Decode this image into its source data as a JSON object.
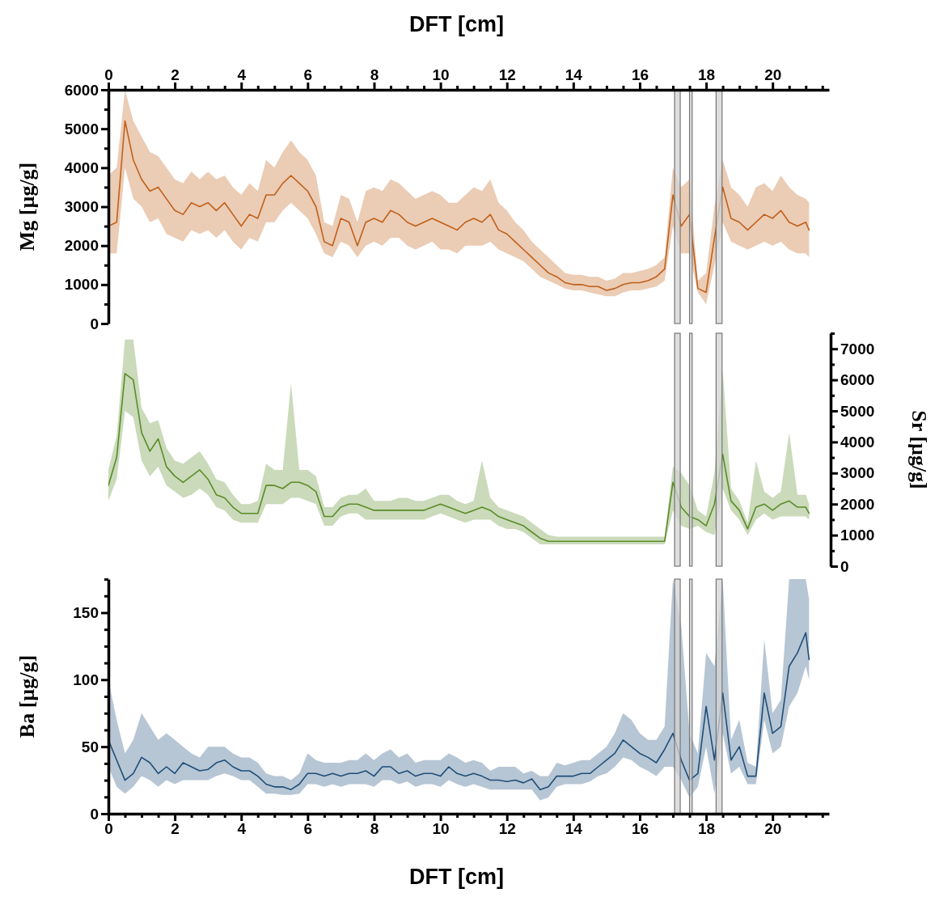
{
  "chart_data": [
    {
      "type": "line",
      "ylabel": "Mg [µg/g]",
      "x2label": "DFT [cm]",
      "xlim": [
        0,
        21.7
      ],
      "x2lim": [
        0,
        21.7
      ],
      "x2ticks": [
        0,
        {
          "value": 0.5,
          "label": null
        },
        {
          "value": 1,
          "label": null
        },
        {
          "value": 1.5,
          "label": null
        },
        2,
        {
          "value": 2.5,
          "label": null
        },
        {
          "value": 3,
          "label": null
        },
        {
          "value": 3.5,
          "label": null
        },
        4,
        {
          "value": 4.5,
          "label": null
        },
        {
          "value": 5,
          "label": null
        },
        {
          "value": 5.5,
          "label": null
        },
        6,
        {
          "value": 6.5,
          "label": null
        },
        {
          "value": 7,
          "label": null
        },
        {
          "value": 7.5,
          "label": null
        },
        8,
        {
          "value": 8.5,
          "label": null
        },
        {
          "value": 9,
          "label": null
        },
        {
          "value": 9.5,
          "label": null
        },
        10,
        {
          "value": 10.5,
          "label": null
        },
        {
          "value": 11,
          "label": null
        },
        {
          "value": 11.5,
          "label": null
        },
        12,
        {
          "value": 12.5,
          "label": null
        },
        {
          "value": 13,
          "label": null
        },
        {
          "value": 13.5,
          "label": null
        },
        14,
        {
          "value": 14.5,
          "label": null
        },
        {
          "value": 15,
          "label": null
        },
        {
          "value": 15.5,
          "label": null
        },
        16,
        {
          "value": 16.5,
          "label": null
        },
        {
          "value": 17,
          "label": null
        },
        {
          "value": 17.5,
          "label": null
        },
        18,
        {
          "value": 18.5,
          "label": null
        },
        {
          "value": 19,
          "label": null
        },
        {
          "value": 19.5,
          "label": null
        },
        20,
        {
          "value": 20.5,
          "label": null
        },
        {
          "value": 21,
          "label": null
        },
        {
          "value": 21.5,
          "label": null
        }
      ],
      "ylim": [
        0,
        6000
      ],
      "yticks": [
        0,
        {
          "value": 500,
          "label": null
        },
        1000,
        {
          "value": 1500,
          "label": null
        },
        2000,
        {
          "value": 2500,
          "label": null
        },
        3000,
        {
          "value": 3500,
          "label": null
        },
        4000,
        {
          "value": 4500,
          "label": null
        },
        5000,
        {
          "value": 5500,
          "label": null
        },
        6000
      ],
      "bands": [
        {
          "axis": "x",
          "from": 17.05,
          "to": 17.22,
          "color": "#d3d3d3"
        },
        {
          "axis": "x",
          "from": 17.5,
          "to": 17.58,
          "color": "#d3d3d3"
        },
        {
          "axis": "x",
          "from": 18.3,
          "to": 18.48,
          "color": "#d3d3d3"
        }
      ],
      "series": [
        {
          "color": "#c0601a",
          "x": [
            0,
            0.25,
            0.5,
            0.75,
            1,
            1.25,
            1.5,
            1.75,
            2,
            2.25,
            2.5,
            2.75,
            3,
            3.25,
            3.5,
            3.75,
            4,
            4.25,
            4.5,
            4.75,
            5,
            5.25,
            5.5,
            5.75,
            6,
            6.25,
            6.5,
            6.75,
            7,
            7.25,
            7.5,
            7.75,
            8,
            8.25,
            8.5,
            8.75,
            9,
            9.25,
            9.5,
            9.75,
            10,
            10.25,
            10.5,
            10.75,
            11,
            11.25,
            11.5,
            11.75,
            12,
            12.25,
            12.5,
            12.75,
            13,
            13.25,
            13.5,
            13.75,
            14,
            14.25,
            14.5,
            14.75,
            15,
            15.25,
            15.5,
            15.75,
            16,
            16.25,
            16.5,
            16.75,
            17,
            17.25,
            17.5,
            17.75,
            18,
            18.25,
            18.5,
            18.75,
            19,
            19.25,
            19.5,
            19.75,
            20,
            20.25,
            20.5,
            20.75,
            21,
            21.1
          ],
          "values": [
            2500,
            2600,
            5200,
            4200,
            3700,
            3400,
            3500,
            3200,
            2900,
            2800,
            3100,
            3000,
            3100,
            2900,
            3100,
            2800,
            2500,
            2800,
            2700,
            3300,
            3300,
            3600,
            3800,
            3600,
            3400,
            3000,
            2100,
            2000,
            2700,
            2600,
            2000,
            2600,
            2700,
            2600,
            2900,
            2800,
            2600,
            2500,
            2600,
            2700,
            2600,
            2500,
            2400,
            2600,
            2700,
            2600,
            2800,
            2400,
            2300,
            2100,
            1900,
            1700,
            1500,
            1300,
            1200,
            1050,
            1000,
            1000,
            950,
            950,
            850,
            900,
            1000,
            1050,
            1050,
            1100,
            1200,
            1400,
            3300,
            2500,
            2800,
            900,
            800,
            2200,
            3500,
            2700,
            2600,
            2400,
            2600,
            2800,
            2700,
            2900,
            2600,
            2500,
            2600,
            2400
          ],
          "lower": [
            1800,
            1800,
            4000,
            3200,
            3000,
            2600,
            2700,
            2300,
            2200,
            2100,
            2400,
            2300,
            2400,
            2200,
            2400,
            2100,
            1900,
            2200,
            2100,
            2600,
            2600,
            2900,
            3100,
            2900,
            2700,
            2300,
            1800,
            1700,
            2100,
            2000,
            1700,
            2000,
            2100,
            2000,
            2200,
            2200,
            2000,
            1900,
            2000,
            2100,
            1900,
            1900,
            1800,
            2000,
            2000,
            2000,
            2100,
            1900,
            1800,
            1700,
            1600,
            1400,
            1200,
            1100,
            1000,
            900,
            850,
            850,
            800,
            750,
            700,
            700,
            800,
            850,
            850,
            900,
            950,
            1100,
            2500,
            1800,
            1800,
            800,
            500,
            1500,
            2600,
            2100,
            2000,
            1900,
            2000,
            2100,
            2000,
            2100,
            1900,
            1800,
            1800,
            1700
          ],
          "upper": [
            3800,
            4000,
            6000,
            5200,
            4800,
            4400,
            4300,
            4000,
            3700,
            3600,
            3900,
            3700,
            3900,
            3700,
            3800,
            3500,
            3300,
            3600,
            3400,
            4200,
            4000,
            4400,
            4700,
            4400,
            4200,
            3800,
            2600,
            2500,
            3300,
            3200,
            2600,
            3400,
            3500,
            3400,
            3700,
            3600,
            3400,
            3200,
            3300,
            3400,
            3300,
            3100,
            3100,
            3300,
            3500,
            3400,
            3700,
            3100,
            2900,
            2600,
            2400,
            2100,
            1900,
            1700,
            1500,
            1300,
            1250,
            1250,
            1200,
            1200,
            1100,
            1150,
            1300,
            1300,
            1350,
            1400,
            1500,
            1700,
            4000,
            3500,
            3700,
            1100,
            1300,
            3000,
            4200,
            3500,
            3300,
            3000,
            3500,
            3600,
            3400,
            3800,
            3500,
            3300,
            3200,
            3100
          ]
        }
      ]
    },
    {
      "type": "line",
      "y2label": "Sr [µg/g]",
      "xlim": [
        0,
        21.7
      ],
      "y2lim": [
        0,
        7500
      ],
      "y2ticks": [
        0,
        {
          "value": 500,
          "label": null
        },
        1000,
        {
          "value": 1500,
          "label": null
        },
        2000,
        {
          "value": 2500,
          "label": null
        },
        3000,
        {
          "value": 3500,
          "label": null
        },
        4000,
        {
          "value": 4500,
          "label": null
        },
        5000,
        {
          "value": 5500,
          "label": null
        },
        6000,
        {
          "value": 6500,
          "label": null
        },
        7000,
        {
          "value": 7500,
          "label": null
        }
      ],
      "bands": [
        {
          "axis": "x",
          "from": 17.05,
          "to": 17.22,
          "color": "#d3d3d3"
        },
        {
          "axis": "x",
          "from": 17.5,
          "to": 17.58,
          "color": "#d3d3d3"
        },
        {
          "axis": "x",
          "from": 18.3,
          "to": 18.48,
          "color": "#d3d3d3"
        }
      ],
      "series": [
        {
          "color": "#5a8c28",
          "axis": "y2",
          "x": [
            0,
            0.25,
            0.5,
            0.75,
            1,
            1.25,
            1.5,
            1.75,
            2,
            2.25,
            2.5,
            2.75,
            3,
            3.25,
            3.5,
            3.75,
            4,
            4.25,
            4.5,
            4.75,
            5,
            5.25,
            5.5,
            5.75,
            6,
            6.25,
            6.5,
            6.75,
            7,
            7.25,
            7.5,
            7.75,
            8,
            8.25,
            8.5,
            8.75,
            9,
            9.25,
            9.5,
            9.75,
            10,
            10.25,
            10.5,
            10.75,
            11,
            11.25,
            11.5,
            11.75,
            12,
            12.25,
            12.5,
            12.75,
            13,
            13.25,
            13.5,
            13.75,
            14,
            14.25,
            14.5,
            14.75,
            15,
            15.25,
            15.5,
            15.75,
            16,
            16.25,
            16.5,
            16.75,
            17,
            17.25,
            17.5,
            17.75,
            18,
            18.25,
            18.5,
            18.75,
            19,
            19.25,
            19.5,
            19.75,
            20,
            20.25,
            20.5,
            20.75,
            21,
            21.1
          ],
          "values": [
            2600,
            3500,
            6200,
            6000,
            4300,
            3700,
            4100,
            3200,
            2900,
            2700,
            2900,
            3100,
            2800,
            2300,
            2200,
            1900,
            1700,
            1700,
            1700,
            2600,
            2600,
            2500,
            2700,
            2700,
            2600,
            2400,
            1600,
            1600,
            1900,
            2000,
            2000,
            1900,
            1800,
            1800,
            1800,
            1800,
            1800,
            1800,
            1800,
            1900,
            2000,
            1900,
            1800,
            1700,
            1800,
            1900,
            1800,
            1600,
            1500,
            1400,
            1300,
            1100,
            900,
            800,
            800,
            800,
            800,
            800,
            800,
            800,
            800,
            800,
            800,
            800,
            800,
            800,
            800,
            800,
            2700,
            1900,
            1600,
            1500,
            1300,
            2000,
            3600,
            2100,
            1800,
            1200,
            1900,
            2000,
            1800,
            2000,
            2100,
            1900,
            1900,
            1700
          ],
          "lower": [
            2100,
            2800,
            5000,
            4800,
            3400,
            2900,
            3200,
            2600,
            2400,
            2200,
            2300,
            2500,
            2300,
            1900,
            1800,
            1500,
            1400,
            1400,
            1400,
            2000,
            2000,
            2000,
            2200,
            2200,
            2100,
            2000,
            1300,
            1300,
            1600,
            1700,
            1700,
            1500,
            1500,
            1500,
            1500,
            1500,
            1500,
            1500,
            1500,
            1600,
            1700,
            1600,
            1500,
            1400,
            1500,
            1500,
            1500,
            1300,
            1200,
            1200,
            1100,
            900,
            700,
            700,
            700,
            700,
            700,
            700,
            700,
            700,
            700,
            700,
            700,
            700,
            700,
            700,
            700,
            700,
            1800,
            1300,
            1200,
            1300,
            1100,
            1000,
            2500,
            1800,
            1500,
            1000,
            1500,
            1700,
            1500,
            1600,
            1600,
            1600,
            1600,
            1500
          ],
          "upper": [
            3100,
            4200,
            7300,
            7300,
            5100,
            4600,
            4700,
            3800,
            3400,
            3300,
            3500,
            3700,
            3300,
            2800,
            2700,
            2300,
            2000,
            2000,
            2100,
            3300,
            3100,
            3100,
            5900,
            3100,
            3100,
            2900,
            1900,
            1900,
            2200,
            2300,
            2300,
            2500,
            2100,
            2100,
            2100,
            2200,
            2200,
            2100,
            2100,
            2200,
            2300,
            2300,
            2100,
            2000,
            2100,
            3400,
            2200,
            1900,
            1800,
            1700,
            1600,
            1400,
            1200,
            1000,
            950,
            950,
            950,
            950,
            950,
            950,
            950,
            950,
            950,
            950,
            950,
            950,
            950,
            950,
            3200,
            3000,
            2600,
            1800,
            1600,
            3000,
            6300,
            2500,
            2100,
            1400,
            3400,
            2400,
            2200,
            2400,
            4300,
            2300,
            2300,
            2000
          ]
        }
      ]
    },
    {
      "type": "line",
      "xlabel": "DFT [cm]",
      "ylabel": "Ba [µg/g]",
      "xlim": [
        0,
        21.7
      ],
      "xticks": [
        0,
        {
          "value": 0.5,
          "label": null
        },
        {
          "value": 1,
          "label": null
        },
        {
          "value": 1.5,
          "label": null
        },
        2,
        {
          "value": 2.5,
          "label": null
        },
        {
          "value": 3,
          "label": null
        },
        {
          "value": 3.5,
          "label": null
        },
        4,
        {
          "value": 4.5,
          "label": null
        },
        {
          "value": 5,
          "label": null
        },
        {
          "value": 5.5,
          "label": null
        },
        6,
        {
          "value": 6.5,
          "label": null
        },
        {
          "value": 7,
          "label": null
        },
        {
          "value": 7.5,
          "label": null
        },
        8,
        {
          "value": 8.5,
          "label": null
        },
        {
          "value": 9,
          "label": null
        },
        {
          "value": 9.5,
          "label": null
        },
        10,
        {
          "value": 10.5,
          "label": null
        },
        {
          "value": 11,
          "label": null
        },
        {
          "value": 11.5,
          "label": null
        },
        12,
        {
          "value": 12.5,
          "label": null
        },
        {
          "value": 13,
          "label": null
        },
        {
          "value": 13.5,
          "label": null
        },
        14,
        {
          "value": 14.5,
          "label": null
        },
        {
          "value": 15,
          "label": null
        },
        {
          "value": 15.5,
          "label": null
        },
        16,
        {
          "value": 16.5,
          "label": null
        },
        {
          "value": 17,
          "label": null
        },
        {
          "value": 17.5,
          "label": null
        },
        18,
        {
          "value": 18.5,
          "label": null
        },
        {
          "value": 19,
          "label": null
        },
        {
          "value": 19.5,
          "label": null
        },
        20,
        {
          "value": 20.5,
          "label": null
        },
        {
          "value": 21,
          "label": null
        },
        {
          "value": 21.5,
          "label": null
        }
      ],
      "ylim": [
        0,
        175
      ],
      "yticks": [
        0,
        {
          "value": 12.5,
          "label": null
        },
        {
          "value": 25,
          "label": null
        },
        {
          "value": 37.5,
          "label": null
        },
        50,
        {
          "value": 62.5,
          "label": null
        },
        {
          "value": 75,
          "label": null
        },
        {
          "value": 87.5,
          "label": null
        },
        100,
        {
          "value": 112.5,
          "label": null
        },
        {
          "value": 125,
          "label": null
        },
        {
          "value": 137.5,
          "label": null
        },
        150,
        {
          "value": 162.5,
          "label": null
        },
        {
          "value": 175,
          "label": null
        }
      ],
      "bands": [
        {
          "axis": "x",
          "from": 17.05,
          "to": 17.22,
          "color": "#d3d3d3"
        },
        {
          "axis": "x",
          "from": 17.5,
          "to": 17.58,
          "color": "#d3d3d3"
        },
        {
          "axis": "x",
          "from": 18.3,
          "to": 18.48,
          "color": "#d3d3d3"
        }
      ],
      "series": [
        {
          "color": "#1f4e79",
          "x": [
            0,
            0.25,
            0.5,
            0.75,
            1,
            1.25,
            1.5,
            1.75,
            2,
            2.25,
            2.5,
            2.75,
            3,
            3.25,
            3.5,
            3.75,
            4,
            4.25,
            4.5,
            4.75,
            5,
            5.25,
            5.5,
            5.75,
            6,
            6.25,
            6.5,
            6.75,
            7,
            7.25,
            7.5,
            7.75,
            8,
            8.25,
            8.5,
            8.75,
            9,
            9.25,
            9.5,
            9.75,
            10,
            10.25,
            10.5,
            10.75,
            11,
            11.25,
            11.5,
            11.75,
            12,
            12.25,
            12.5,
            12.75,
            13,
            13.25,
            13.5,
            13.75,
            14,
            14.25,
            14.5,
            14.75,
            15,
            15.25,
            15.5,
            15.75,
            16,
            16.25,
            16.5,
            16.75,
            17,
            17.25,
            17.5,
            17.75,
            18,
            18.25,
            18.5,
            18.75,
            19,
            19.25,
            19.5,
            19.75,
            20,
            20.25,
            20.5,
            20.75,
            21,
            21.1
          ],
          "values": [
            55,
            40,
            25,
            30,
            42,
            38,
            30,
            35,
            30,
            38,
            35,
            32,
            33,
            38,
            40,
            35,
            32,
            32,
            28,
            22,
            20,
            20,
            18,
            22,
            30,
            30,
            28,
            30,
            28,
            30,
            30,
            32,
            28,
            35,
            35,
            30,
            32,
            28,
            30,
            30,
            28,
            35,
            30,
            28,
            30,
            28,
            25,
            25,
            24,
            25,
            23,
            26,
            18,
            20,
            28,
            28,
            28,
            30,
            30,
            35,
            40,
            45,
            55,
            50,
            45,
            42,
            38,
            48,
            60,
            40,
            25,
            30,
            80,
            40,
            90,
            40,
            50,
            28,
            28,
            90,
            60,
            65,
            110,
            120,
            135,
            115
          ],
          "lower": [
            35,
            20,
            15,
            20,
            28,
            25,
            20,
            25,
            22,
            25,
            25,
            25,
            25,
            28,
            30,
            28,
            25,
            25,
            20,
            15,
            15,
            14,
            14,
            15,
            22,
            22,
            20,
            22,
            20,
            22,
            22,
            22,
            20,
            25,
            25,
            22,
            24,
            20,
            22,
            22,
            20,
            25,
            22,
            20,
            22,
            20,
            18,
            18,
            18,
            18,
            18,
            18,
            10,
            12,
            20,
            22,
            22,
            22,
            24,
            28,
            30,
            35,
            42,
            40,
            35,
            32,
            28,
            35,
            35,
            25,
            12,
            20,
            50,
            15,
            60,
            30,
            35,
            22,
            22,
            70,
            45,
            50,
            80,
            90,
            110,
            100
          ],
          "upper": [
            100,
            70,
            45,
            55,
            75,
            65,
            55,
            60,
            55,
            50,
            45,
            42,
            50,
            50,
            50,
            45,
            42,
            42,
            38,
            30,
            28,
            28,
            25,
            30,
            45,
            40,
            38,
            38,
            38,
            40,
            40,
            45,
            40,
            45,
            48,
            42,
            45,
            38,
            40,
            40,
            40,
            45,
            42,
            38,
            40,
            38,
            32,
            35,
            35,
            35,
            30,
            32,
            28,
            28,
            38,
            36,
            38,
            40,
            40,
            45,
            50,
            60,
            75,
            70,
            60,
            55,
            55,
            65,
            175,
            140,
            60,
            45,
            120,
            110,
            175,
            55,
            70,
            38,
            35,
            130,
            75,
            85,
            175,
            175,
            175,
            160
          ]
        }
      ]
    }
  ]
}
